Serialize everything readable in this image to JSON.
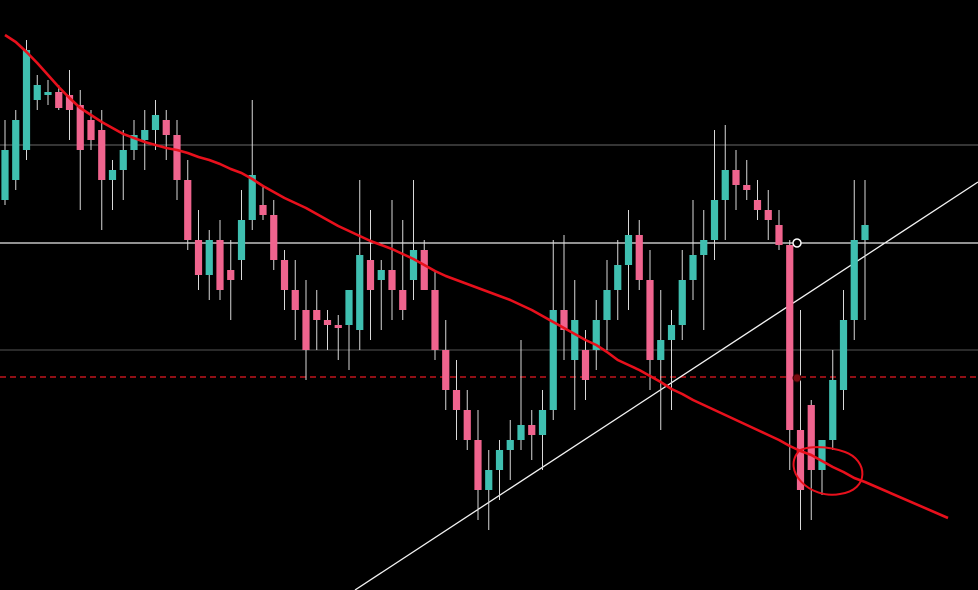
{
  "chart_data": {
    "type": "candlestick",
    "ylim": [
      0,
      590
    ],
    "up_color": "#3fbfb0",
    "down_color": "#f0648e",
    "open": [
      390,
      410,
      440,
      490,
      495,
      498,
      495,
      485,
      470,
      460,
      410,
      420,
      440,
      450,
      460,
      470,
      455,
      410,
      350,
      315,
      350,
      320,
      330,
      370,
      385,
      375,
      330,
      300,
      280,
      280,
      270,
      265,
      265,
      260,
      330,
      310,
      320,
      300,
      310,
      340,
      300,
      240,
      200,
      180,
      150,
      100,
      120,
      140,
      150,
      165,
      155,
      180,
      280,
      230,
      240,
      240,
      270,
      300,
      325,
      355,
      310,
      230,
      250,
      265,
      310,
      335,
      350,
      390,
      420,
      405,
      390,
      380,
      365,
      345,
      160,
      185,
      120,
      150,
      200,
      270,
      350
    ],
    "high": [
      470,
      480,
      550,
      515,
      510,
      505,
      520,
      500,
      480,
      480,
      430,
      460,
      470,
      480,
      490,
      480,
      470,
      430,
      380,
      360,
      370,
      350,
      400,
      490,
      405,
      390,
      340,
      330,
      310,
      300,
      280,
      275,
      300,
      410,
      380,
      330,
      390,
      370,
      410,
      350,
      320,
      270,
      230,
      200,
      180,
      140,
      150,
      170,
      250,
      180,
      200,
      350,
      355,
      310,
      260,
      290,
      330,
      350,
      380,
      370,
      340,
      300,
      280,
      340,
      390,
      380,
      460,
      465,
      440,
      430,
      410,
      400,
      380,
      350,
      280,
      190,
      150,
      240,
      300,
      410,
      410
    ],
    "low": [
      385,
      400,
      430,
      480,
      485,
      480,
      450,
      380,
      440,
      360,
      380,
      390,
      430,
      420,
      440,
      430,
      390,
      340,
      300,
      290,
      290,
      270,
      310,
      360,
      370,
      320,
      280,
      250,
      210,
      240,
      240,
      230,
      220,
      240,
      250,
      260,
      270,
      270,
      290,
      300,
      230,
      180,
      150,
      140,
      70,
      60,
      90,
      110,
      140,
      130,
      120,
      170,
      230,
      180,
      190,
      220,
      240,
      270,
      280,
      300,
      200,
      160,
      180,
      250,
      290,
      260,
      330,
      350,
      380,
      390,
      370,
      350,
      340,
      120,
      60,
      70,
      95,
      140,
      180,
      250,
      270
    ],
    "close": [
      440,
      470,
      540,
      505,
      498,
      482,
      480,
      440,
      450,
      410,
      420,
      440,
      455,
      460,
      475,
      455,
      410,
      350,
      315,
      350,
      300,
      310,
      370,
      415,
      375,
      330,
      300,
      280,
      240,
      270,
      265,
      262,
      300,
      335,
      300,
      320,
      300,
      280,
      340,
      300,
      240,
      200,
      180,
      150,
      100,
      120,
      140,
      150,
      165,
      155,
      180,
      280,
      260,
      270,
      210,
      270,
      300,
      325,
      355,
      310,
      230,
      250,
      265,
      310,
      335,
      350,
      390,
      420,
      405,
      400,
      380,
      370,
      345,
      160,
      100,
      120,
      150,
      210,
      270,
      350,
      365
    ],
    "ma": {
      "color": "#e8101c",
      "values": [
        555,
        548,
        538,
        527,
        515,
        503,
        492,
        482,
        475,
        468,
        462,
        456,
        452,
        448,
        445,
        442,
        440,
        437,
        433,
        430,
        426,
        421,
        417,
        411,
        404,
        398,
        392,
        387,
        382,
        376,
        370,
        364,
        359,
        354,
        349,
        345,
        341,
        336,
        331,
        325,
        319,
        314,
        310,
        306,
        302,
        298,
        294,
        290,
        285,
        280,
        274,
        268,
        262,
        256,
        250,
        245,
        238,
        230,
        225,
        220,
        214,
        208,
        201,
        196,
        190,
        185,
        180,
        175,
        170,
        165,
        160,
        155,
        150,
        144,
        139,
        135,
        129,
        123,
        118,
        112,
        108
      ]
    },
    "levels": [
      {
        "value": 445,
        "color": "#555555",
        "style": "solid"
      },
      {
        "value": 347,
        "color": "#e8e8e8",
        "style": "solid"
      },
      {
        "value": 240,
        "color": "#444444",
        "style": "solid"
      },
      {
        "value": 213,
        "color": "#c0141c",
        "style": "dashed"
      }
    ]
  }
}
